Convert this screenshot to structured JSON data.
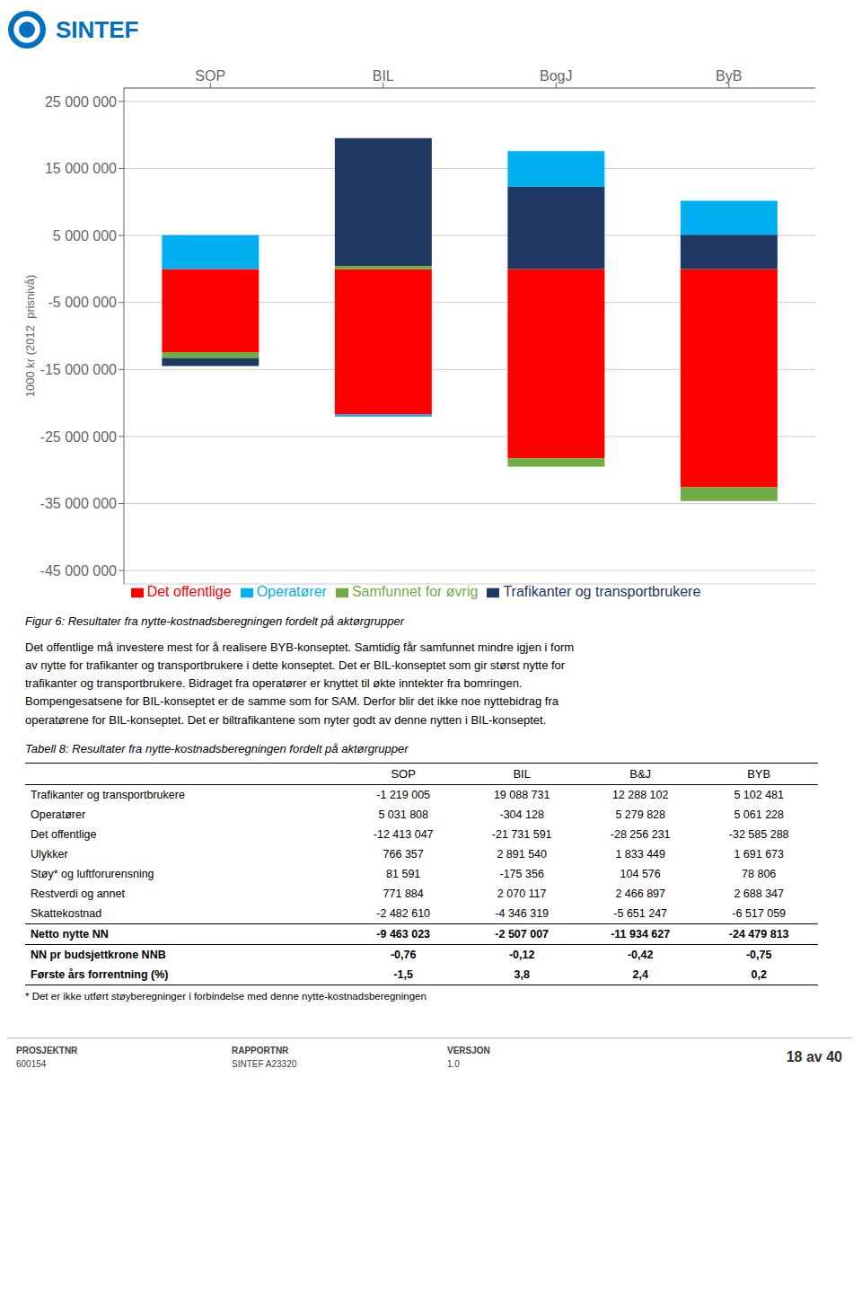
{
  "header": {
    "text": "SINTEF",
    "color": "#0070C0"
  },
  "chart_data": {
    "type": "bar",
    "stacked": true,
    "categories": [
      "SOP",
      "BIL",
      "BogJ",
      "ByB"
    ],
    "series": [
      {
        "name": "Det offentlige",
        "color": "#FF0000",
        "values": [
          -12413047,
          -21731591,
          -28256231,
          -32585288
        ]
      },
      {
        "name": "Samfunnet for øvrig",
        "color": "#70AD47",
        "values": [
          -862778,
          439982,
          -1246325,
          -2058233
        ]
      },
      {
        "name": "Trafikanter og transportbrukere",
        "color": "#1F3864",
        "values": [
          -1219005,
          19088731,
          12288102,
          5102481
        ]
      },
      {
        "name": "Operatører",
        "color": "#00B0F0",
        "values": [
          5031808,
          -304128,
          5279828,
          5061228
        ]
      }
    ],
    "ylabel": "1000 kr (2012  prisnivå)",
    "ylim": [
      -47000000,
      27000000
    ],
    "yticks": [
      {
        "value": -45000000,
        "label": "-45 000 000"
      },
      {
        "value": -35000000,
        "label": "-35 000 000"
      },
      {
        "value": -25000000,
        "label": "-25 000 000"
      },
      {
        "value": -15000000,
        "label": "-15 000 000"
      },
      {
        "value": -5000000,
        "label": "-5 000 000"
      },
      {
        "value": 5000000,
        "label": "5 000 000"
      },
      {
        "value": 15000000,
        "label": "15 000 000"
      },
      {
        "value": 25000000,
        "label": "25 000 000"
      }
    ],
    "grid": true,
    "legend": "bottom"
  },
  "caption": "Figur 6: Resultater fra nytte-kostnadsberegningen fordelt på aktørgrupper",
  "body_text": [
    "Det offentlige må investere mest for å realisere BYB-konseptet. Samtidig får samfunnet mindre igjen i form",
    "av nytte for trafikanter og transportbrukere i dette konseptet. Det er BIL-konseptet som gir størst nytte for",
    "trafikanter og transportbrukere. Bidraget fra operatører er knyttet til økte inntekter fra bomringen.",
    "Bompengesatsene for BIL-konseptet er de samme som for SAM. Derfor blir det ikke noe nyttebidrag fra",
    "operatørene for BIL-konseptet. Det er biltrafikantene som nyter godt av denne nytten i BIL-konseptet."
  ],
  "table": {
    "title": "Tabell 8: Resultater fra nytte-kostnadsberegningen fordelt på aktørgrupper",
    "columns": [
      "SOP",
      "BIL",
      "B&J",
      "BYB"
    ],
    "rows": [
      [
        "Trafikanter og transportbrukere",
        "-1 219 005",
        "19 088 731",
        "12 288 102",
        "5 102 481"
      ],
      [
        "Operatører",
        "5 031 808",
        "-304 128",
        "5 279 828",
        "5 061 228"
      ],
      [
        "Det offentlige",
        "-12 413 047",
        "-21 731 591",
        "-28 256 231",
        "-32 585 288"
      ],
      [
        "Ulykker",
        "766 357",
        "2 891 540",
        "1 833 449",
        "1 691 673"
      ],
      [
        "Støy* og luftforurensning",
        "81 591",
        "-175 356",
        "104 576",
        "78 806"
      ],
      [
        "Restverdi og annet",
        "771 884",
        "2 070 117",
        "2 466 897",
        "2 688 347"
      ],
      [
        "Skattekostnad",
        "-2 482 610",
        "-4 346 319",
        "-5 651 247",
        "-6 517 059"
      ],
      [
        "Netto nytte NN",
        "-9 463 023",
        "-2 507 007",
        "-11 934 627",
        "-24 479 813"
      ],
      [
        "NN pr budsjettkrone NNB",
        "-0,76",
        "-0,12",
        "-0,42",
        "-0,75"
      ],
      [
        "Første års forrentning (%)",
        "-1,5",
        "3,8",
        "2,4",
        "0,2"
      ]
    ],
    "bold_rows": [
      7,
      8,
      9
    ],
    "separator_rows": [
      7,
      8
    ],
    "footnote": "* Det er ikke utført støyberegninger i forbindelse med denne nytte-kostnadsberegningen"
  },
  "footer": {
    "items": [
      {
        "label": "PROSJEKTNR",
        "value": "600154"
      },
      {
        "label": "RAPPORTNR",
        "value": "SINTEF A23320"
      },
      {
        "label": "VERSJON",
        "value": "1.0"
      }
    ],
    "page": "18 av 40"
  }
}
